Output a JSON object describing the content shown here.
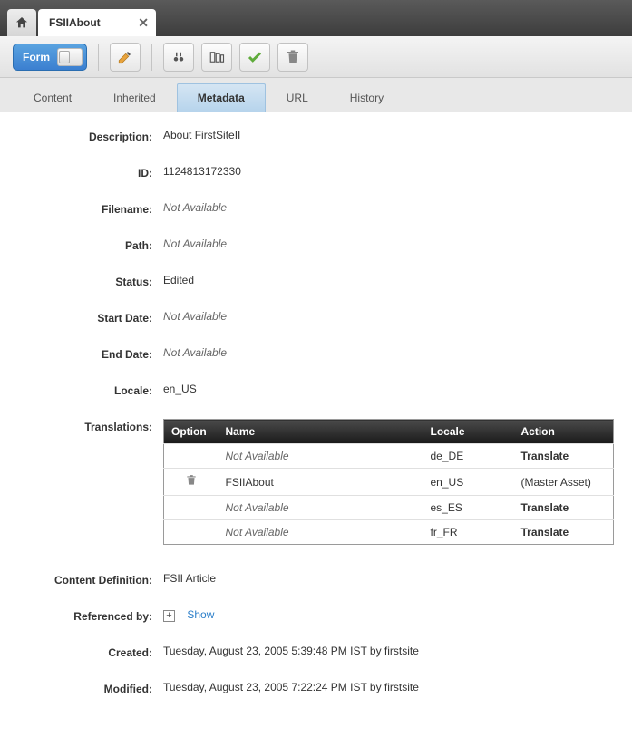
{
  "tab": {
    "title": "FSIIAbout"
  },
  "toolbar": {
    "form_label": "Form"
  },
  "subtabs": {
    "content": "Content",
    "inherited": "Inherited",
    "metadata": "Metadata",
    "url": "URL",
    "history": "History"
  },
  "labels": {
    "description": "Description:",
    "id": "ID:",
    "filename": "Filename:",
    "path": "Path:",
    "status": "Status:",
    "start_date": "Start Date:",
    "end_date": "End Date:",
    "locale": "Locale:",
    "translations": "Translations:",
    "content_definition": "Content Definition:",
    "referenced_by": "Referenced by:",
    "created": "Created:",
    "modified": "Modified:"
  },
  "values": {
    "description": "About FirstSiteII",
    "id": "1124813172330",
    "filename": "Not Available",
    "path": "Not Available",
    "status": "Edited",
    "start_date": "Not Available",
    "end_date": "Not Available",
    "locale": "en_US",
    "content_definition": "FSII Article",
    "referenced_by_action": "Show",
    "created": "Tuesday, August 23, 2005 5:39:48 PM IST by firstsite",
    "modified": "Tuesday, August 23, 2005 7:22:24 PM IST by firstsite"
  },
  "translations": {
    "headers": {
      "option": "Option",
      "name": "Name",
      "locale": "Locale",
      "action": "Action"
    },
    "rows": [
      {
        "option": "",
        "name": "Not Available",
        "name_na": true,
        "locale": "de_DE",
        "action": "Translate",
        "action_link": true
      },
      {
        "option": "trash",
        "name": "FSIIAbout",
        "name_na": false,
        "locale": "en_US",
        "action": "(Master Asset)",
        "action_link": false
      },
      {
        "option": "",
        "name": "Not Available",
        "name_na": true,
        "locale": "es_ES",
        "action": "Translate",
        "action_link": true
      },
      {
        "option": "",
        "name": "Not Available",
        "name_na": true,
        "locale": "fr_FR",
        "action": "Translate",
        "action_link": true
      }
    ]
  },
  "colors": {
    "link": "#2b7ec9",
    "th_bg_start": "#4a4a4a",
    "th_bg_end": "#1a1a1a",
    "active_tab_start": "#d5e5f3",
    "active_tab_end": "#b7d4ec"
  }
}
